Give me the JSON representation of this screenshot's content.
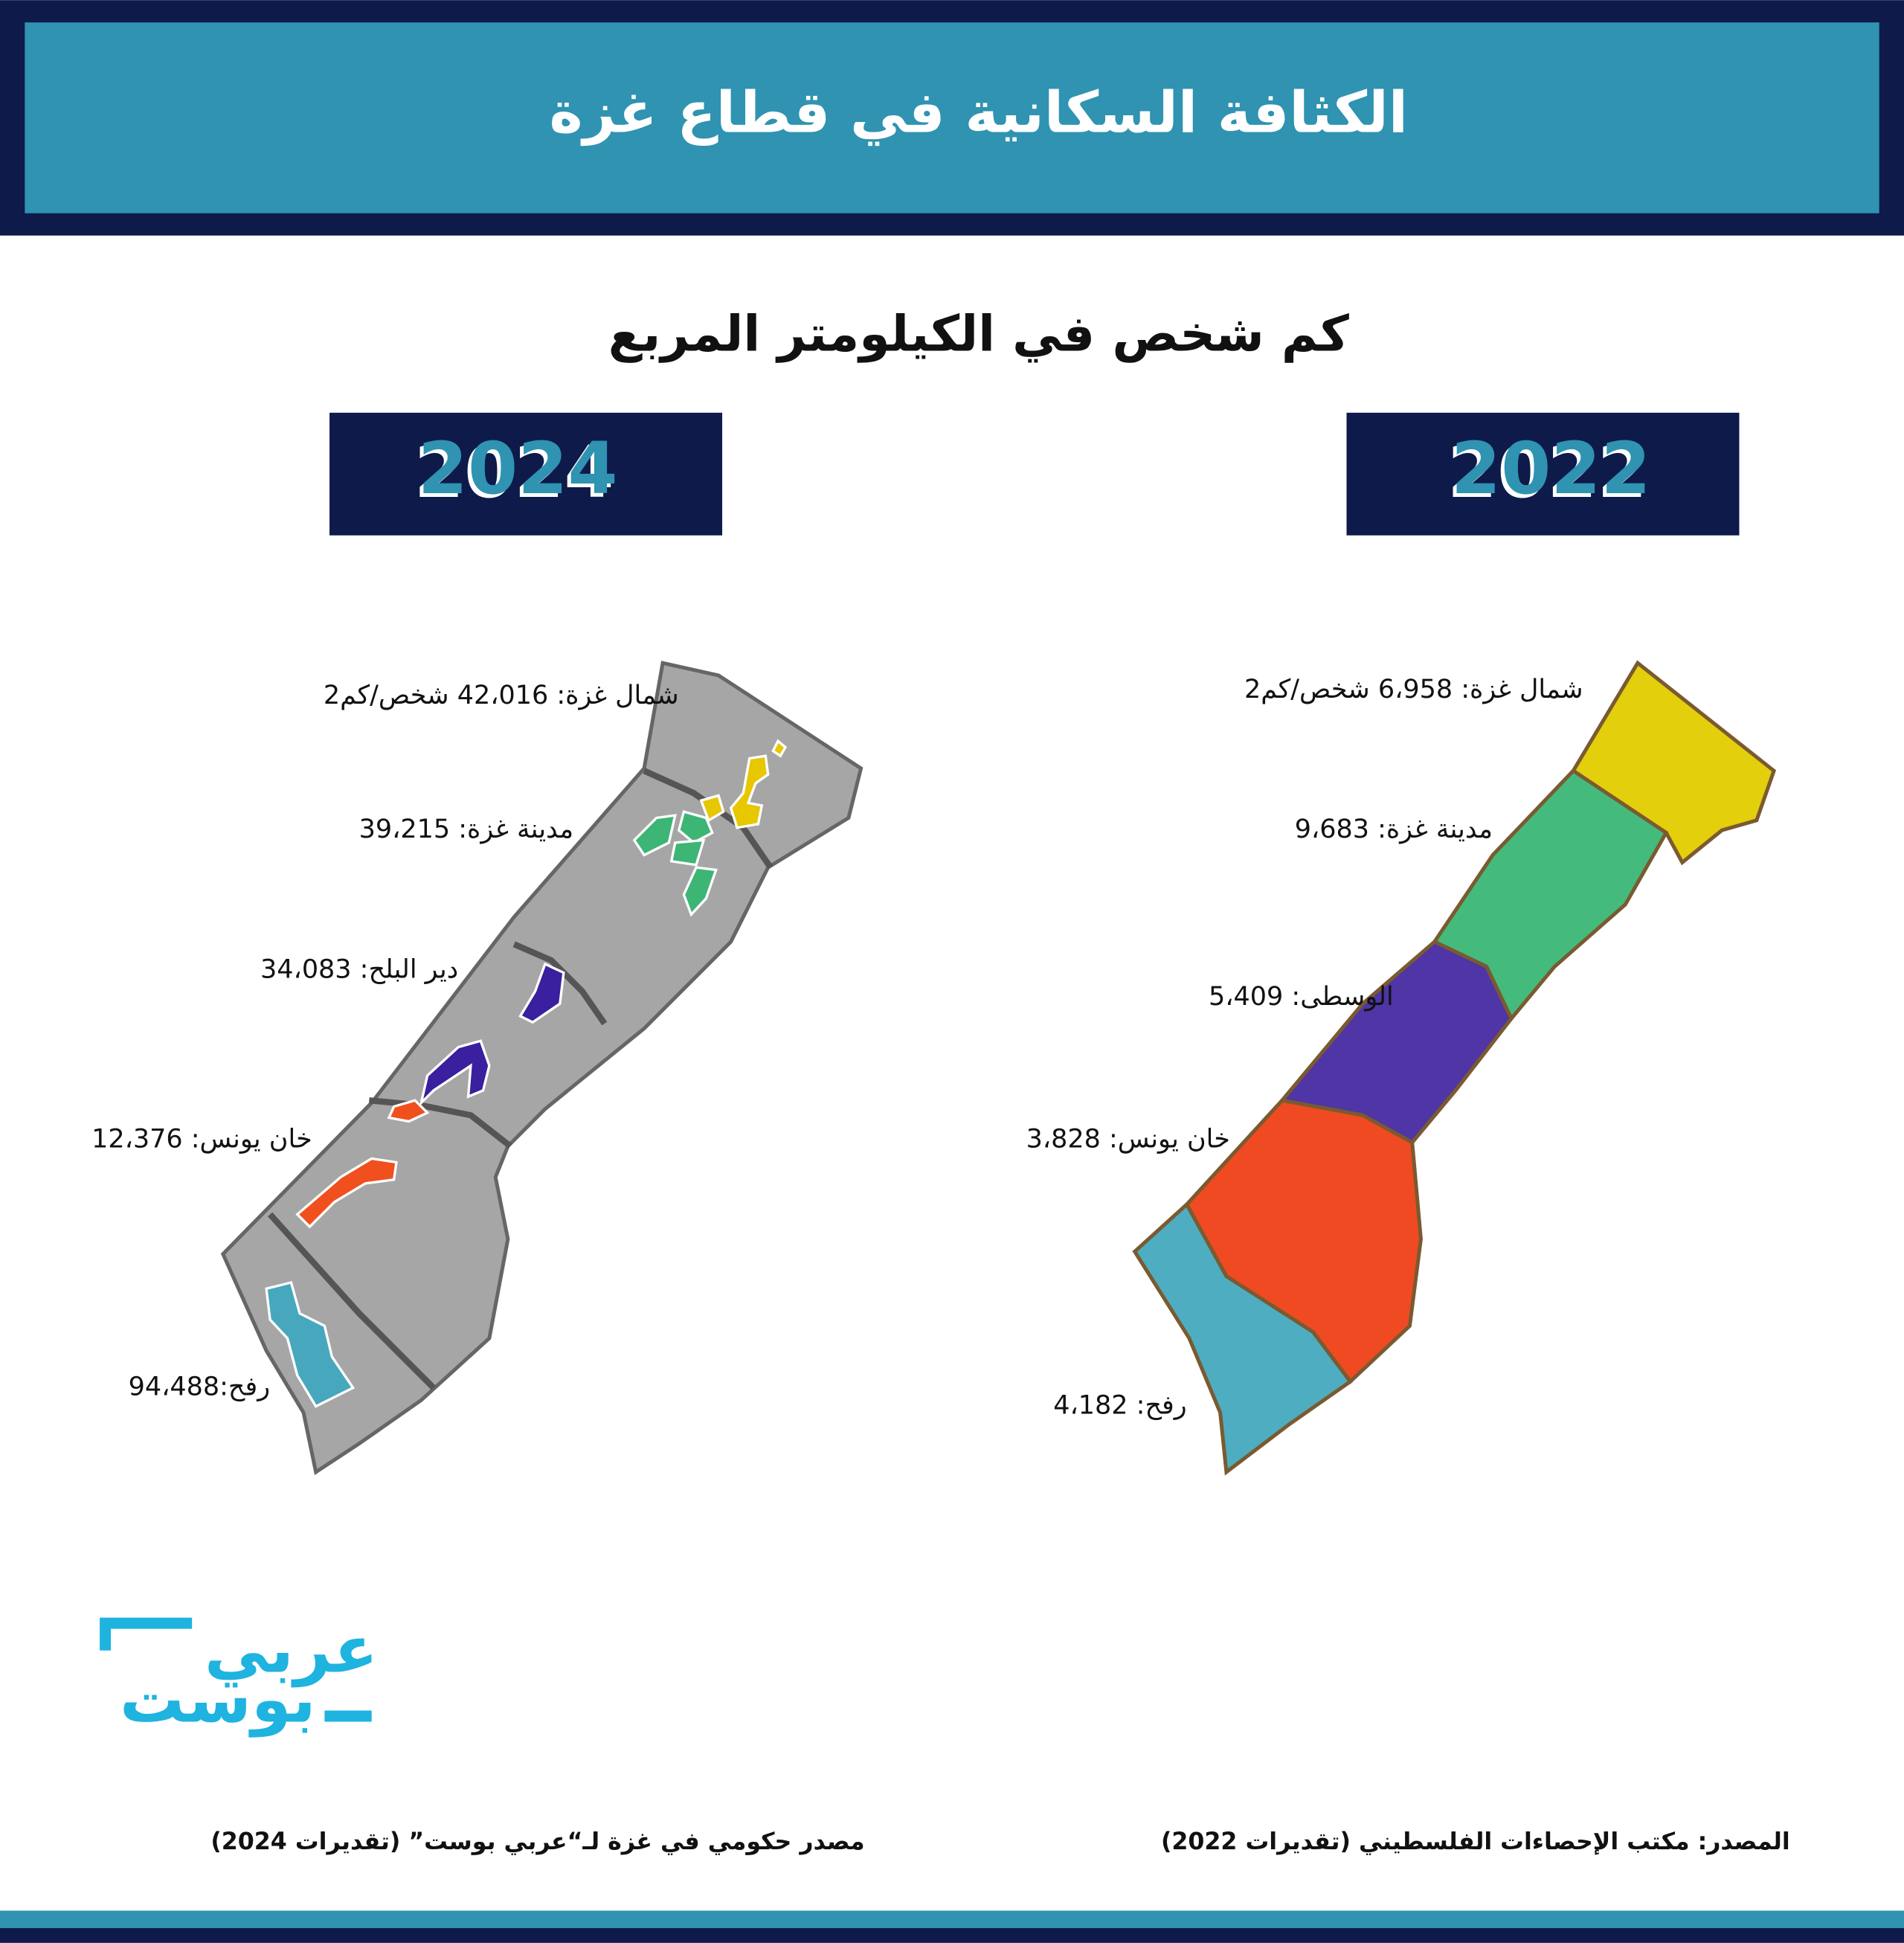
{
  "header": {
    "title": "الكثافة السكانية في قطاع غزة"
  },
  "subtitle": "كم شخص في الكيلومتر المربع",
  "maps": [
    {
      "year": "2024",
      "regions": [
        "شمال غزة: 42،016 شخص/كم2",
        "مدينة غزة: 39،215",
        "دير البلح: 34،083",
        "خان يونس: 12،376",
        "رفح:94،488"
      ],
      "source": "مصدر حكومي في غزة لـ“عربي بوست” (تقديرات 2024)"
    },
    {
      "year": "2022",
      "regions": [
        "شمال غزة: 6،958 شخص/كم2",
        "مدينة غزة: 9،683",
        "الوسطى: 5،409",
        "خان يونس: 3،828",
        "رفح: 4،182"
      ],
      "source": "المصدر: مكتب الإحصاءات الفلسطيني (تقديرات 2022)"
    }
  ],
  "logo": {
    "line1": "عربي",
    "line2": "بوست"
  }
}
